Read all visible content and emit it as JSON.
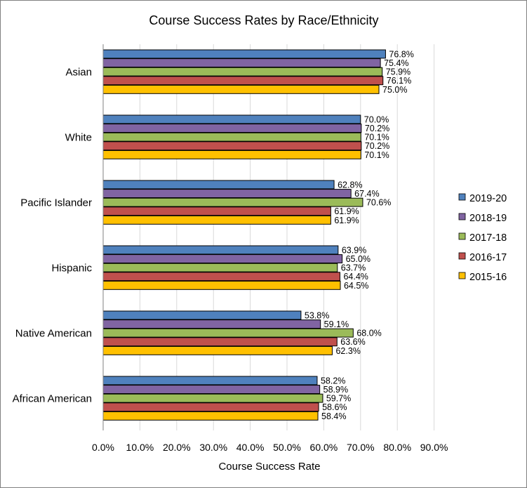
{
  "chart_data": {
    "type": "bar",
    "orientation": "horizontal",
    "title": "Course Success Rates by Race/Ethnicity",
    "xlabel": "Course Success Rate",
    "ylabel": "",
    "xlim": [
      0,
      90
    ],
    "x_ticks": [
      "0.0%",
      "10.0%",
      "20.0%",
      "30.0%",
      "40.0%",
      "50.0%",
      "60.0%",
      "70.0%",
      "80.0%",
      "90.0%"
    ],
    "grid": "vertical",
    "legend_position": "right",
    "categories": [
      "Asian",
      "White",
      "Pacific Islander",
      "Hispanic",
      "Native American",
      "African American"
    ],
    "series": [
      {
        "name": "2019-20",
        "color": "#4F81BD",
        "values": [
          76.8,
          70.0,
          62.8,
          63.9,
          53.8,
          58.2
        ],
        "labels": [
          "76.8%",
          "70.0%",
          "62.8%",
          "63.9%",
          "53.8%",
          "58.2%"
        ]
      },
      {
        "name": "2018-19",
        "color": "#8064A2",
        "values": [
          75.4,
          70.2,
          67.4,
          65.0,
          59.1,
          58.9
        ],
        "labels": [
          "75.4%",
          "70.2%",
          "67.4%",
          "65.0%",
          "59.1%",
          "58.9%"
        ]
      },
      {
        "name": "2017-18",
        "color": "#9BBB59",
        "values": [
          75.9,
          70.1,
          70.6,
          63.7,
          68.0,
          59.7
        ],
        "labels": [
          "75.9%",
          "70.1%",
          "70.6%",
          "63.7%",
          "68.0%",
          "59.7%"
        ]
      },
      {
        "name": "2016-17",
        "color": "#C0504D",
        "values": [
          76.1,
          70.2,
          61.9,
          64.4,
          63.6,
          58.6
        ],
        "labels": [
          "76.1%",
          "70.2%",
          "61.9%",
          "64.4%",
          "63.6%",
          "58.6%"
        ]
      },
      {
        "name": "2015-16",
        "color": "#FFC000",
        "values": [
          75.0,
          70.1,
          61.9,
          64.5,
          62.3,
          58.4
        ],
        "labels": [
          "75.0%",
          "70.1%",
          "61.9%",
          "64.5%",
          "62.3%",
          "58.4%"
        ]
      }
    ]
  }
}
